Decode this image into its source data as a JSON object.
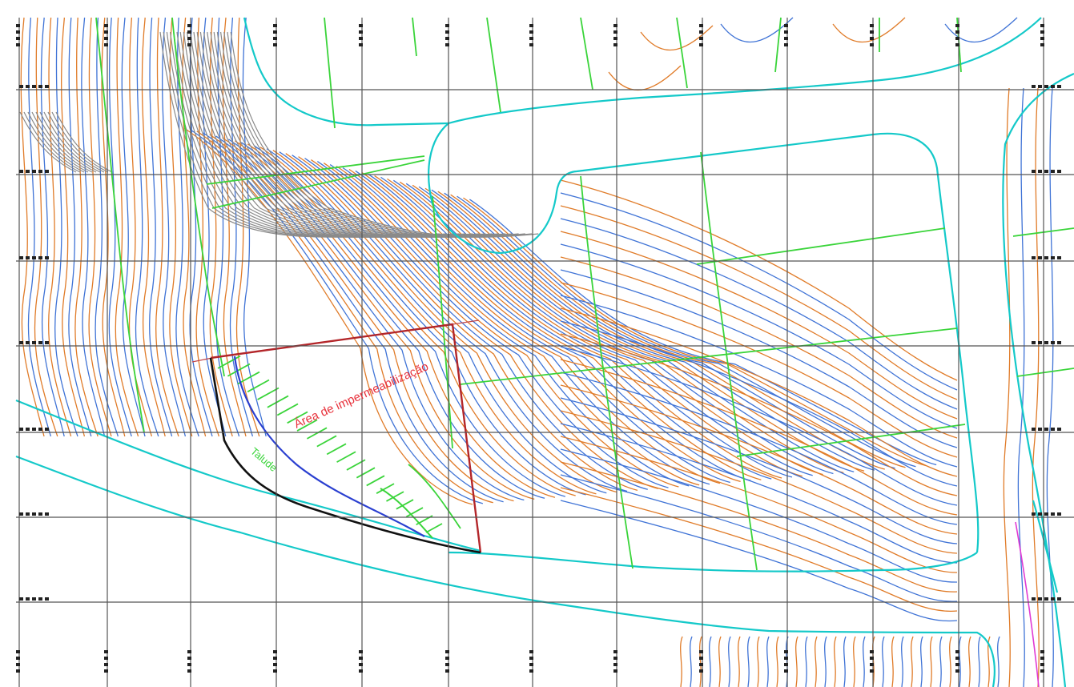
{
  "map": {
    "colors": {
      "contour_orange": "#e07b28",
      "contour_blue": "#3f73d6",
      "contour_gray": "#8a8a8a",
      "road_cyan": "#14c9c9",
      "parcel_green": "#3ad43a",
      "boundary_red": "#b3262a",
      "boundary_black": "#111111",
      "slope_blue": "#2a3fd0",
      "magenta": "#e03ad4",
      "area_label_red": "#e8323c"
    },
    "area_label": "Área de impermeabilização",
    "zone_label": "Talude"
  }
}
